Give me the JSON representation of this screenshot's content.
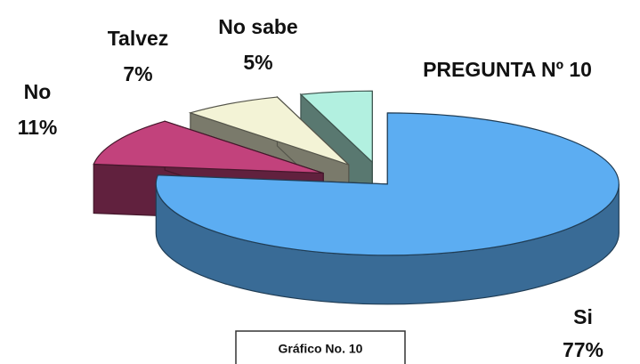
{
  "chart_data": {
    "type": "pie",
    "title": "PREGUNTA Nº 10",
    "caption": "Gráfico No. 10",
    "categories": [
      "Si",
      "No",
      "Talvez",
      "No sabe"
    ],
    "values": [
      77,
      11,
      7,
      5
    ],
    "value_labels": [
      "77%",
      "11%",
      "7%",
      "5%"
    ],
    "colors": [
      "#5cadf2",
      "#c2427c",
      "#f3f3d6",
      "#b2f0e0"
    ]
  }
}
